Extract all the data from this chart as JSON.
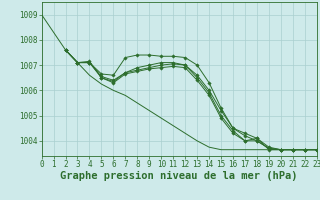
{
  "background_color": "#ceeaea",
  "grid_color": "#aacfcf",
  "line_color": "#2d6e2d",
  "title": "Graphe pression niveau de la mer (hPa)",
  "xlim": [
    0,
    23
  ],
  "ylim": [
    1003.4,
    1009.5
  ],
  "yticks": [
    1004,
    1005,
    1006,
    1007,
    1008,
    1009
  ],
  "xticks": [
    0,
    1,
    2,
    3,
    4,
    5,
    6,
    7,
    8,
    9,
    10,
    11,
    12,
    13,
    14,
    15,
    16,
    17,
    18,
    19,
    20,
    21,
    22,
    23
  ],
  "series": [
    {
      "x": [
        0,
        1,
        2,
        3,
        4,
        5,
        6,
        7,
        8,
        9,
        10,
        11,
        12,
        13,
        14,
        15,
        16,
        17,
        18,
        19,
        20,
        21,
        22,
        23
      ],
      "y": [
        1009.0,
        1008.3,
        1007.6,
        1007.1,
        1006.6,
        1006.25,
        1006.0,
        1005.8,
        1005.5,
        1005.2,
        1004.9,
        1004.6,
        1004.3,
        1004.0,
        1003.75,
        1003.65,
        1003.65,
        1003.65,
        1003.65,
        1003.65,
        1003.65,
        1003.65,
        1003.65,
        1003.65
      ],
      "marker": false
    },
    {
      "x": [
        2,
        3,
        4,
        5,
        6,
        7,
        8,
        9,
        10,
        11,
        12,
        13,
        14,
        15,
        16,
        17,
        18,
        19,
        20,
        21,
        22,
        23
      ],
      "y": [
        1007.6,
        1007.1,
        1007.1,
        1006.65,
        1006.6,
        1007.3,
        1007.4,
        1007.4,
        1007.35,
        1007.35,
        1007.3,
        1007.0,
        1006.3,
        1005.3,
        1004.5,
        1004.2,
        1004.0,
        1003.7,
        1003.65,
        1003.65,
        1003.65,
        1003.65
      ],
      "marker": true
    },
    {
      "x": [
        2,
        3,
        4,
        5,
        6,
        7,
        8,
        9,
        10,
        11,
        12,
        13,
        14,
        15,
        16,
        17,
        18,
        19,
        20,
        21,
        22,
        23
      ],
      "y": [
        1007.6,
        1007.1,
        1007.1,
        1006.55,
        1006.4,
        1006.7,
        1006.9,
        1007.0,
        1007.1,
        1007.1,
        1007.0,
        1006.6,
        1006.0,
        1005.2,
        1004.5,
        1004.3,
        1004.1,
        1003.75,
        1003.65,
        1003.65,
        1003.65,
        1003.65
      ],
      "marker": true
    },
    {
      "x": [
        2,
        3,
        4,
        5,
        6,
        7,
        8,
        9,
        10,
        11,
        12,
        13,
        14,
        15,
        16,
        17,
        18,
        19,
        20,
        21,
        22,
        23
      ],
      "y": [
        1007.6,
        1007.1,
        1007.15,
        1006.5,
        1006.35,
        1006.7,
        1006.8,
        1006.9,
        1007.0,
        1007.05,
        1007.0,
        1006.5,
        1005.9,
        1005.0,
        1004.4,
        1004.0,
        1004.0,
        1003.7,
        1003.65,
        1003.65,
        1003.65,
        1003.65
      ],
      "marker": true
    },
    {
      "x": [
        2,
        3,
        4,
        5,
        6,
        7,
        8,
        9,
        10,
        11,
        12,
        13,
        14,
        15,
        16,
        17,
        18,
        19,
        20,
        21,
        22,
        23
      ],
      "y": [
        1007.6,
        1007.1,
        1007.1,
        1006.5,
        1006.3,
        1006.65,
        1006.75,
        1006.85,
        1006.9,
        1006.95,
        1006.9,
        1006.4,
        1005.8,
        1004.9,
        1004.3,
        1004.0,
        1004.1,
        1003.65,
        1003.65,
        1003.65,
        1003.65,
        1003.65
      ],
      "marker": true
    }
  ],
  "title_fontsize": 7.5,
  "tick_fontsize": 5.5
}
